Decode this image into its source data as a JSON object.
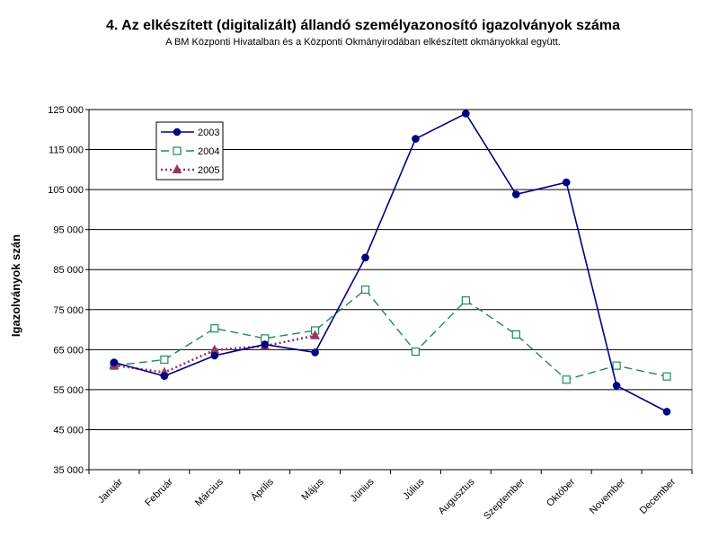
{
  "chart_data": {
    "type": "line",
    "title": "4. Az elkészített (digitalizált) állandó személyazonosító igazolványok száma",
    "subtitle": "A BM Központi Hivatalban és a Központi Okmányirodában elkészített okmányokkal együtt.",
    "xlabel": "",
    "ylabel": "Igazolványok szán",
    "ylim": [
      35000,
      125000
    ],
    "ytick_values": [
      35000,
      45000,
      55000,
      65000,
      75000,
      85000,
      95000,
      105000,
      115000,
      125000
    ],
    "ytick_labels": [
      "35 000",
      "45 000",
      "55 000",
      "65 000",
      "75 000",
      "85 000",
      "95 000",
      "105 000",
      "115 000",
      "125 000"
    ],
    "grid": true,
    "legend_position": "top-left",
    "categories": [
      "Január",
      "Február",
      "Március",
      "Április",
      "Május",
      "Június",
      "Július",
      "Augusztus",
      "Szeptember",
      "Október",
      "November",
      "December"
    ],
    "series": [
      {
        "name": "2003",
        "color": "#000080",
        "marker": "circle",
        "dash": "solid",
        "values": [
          61800,
          58400,
          63500,
          66300,
          64300,
          88000,
          117700,
          124000,
          103800,
          106800,
          56000,
          49500
        ]
      },
      {
        "name": "2004",
        "color": "#1e8a5a",
        "marker": "square-open",
        "dash": "dashed",
        "values": [
          61000,
          62500,
          70300,
          67800,
          69800,
          80000,
          64500,
          77300,
          68800,
          57500,
          61000,
          58300
        ]
      },
      {
        "name": "2005",
        "color": "#993366",
        "marker": "triangle",
        "dash": "dotted",
        "values": [
          61100,
          59300,
          64900,
          65900,
          68500,
          null,
          null,
          null,
          null,
          null,
          null,
          null
        ]
      }
    ]
  }
}
